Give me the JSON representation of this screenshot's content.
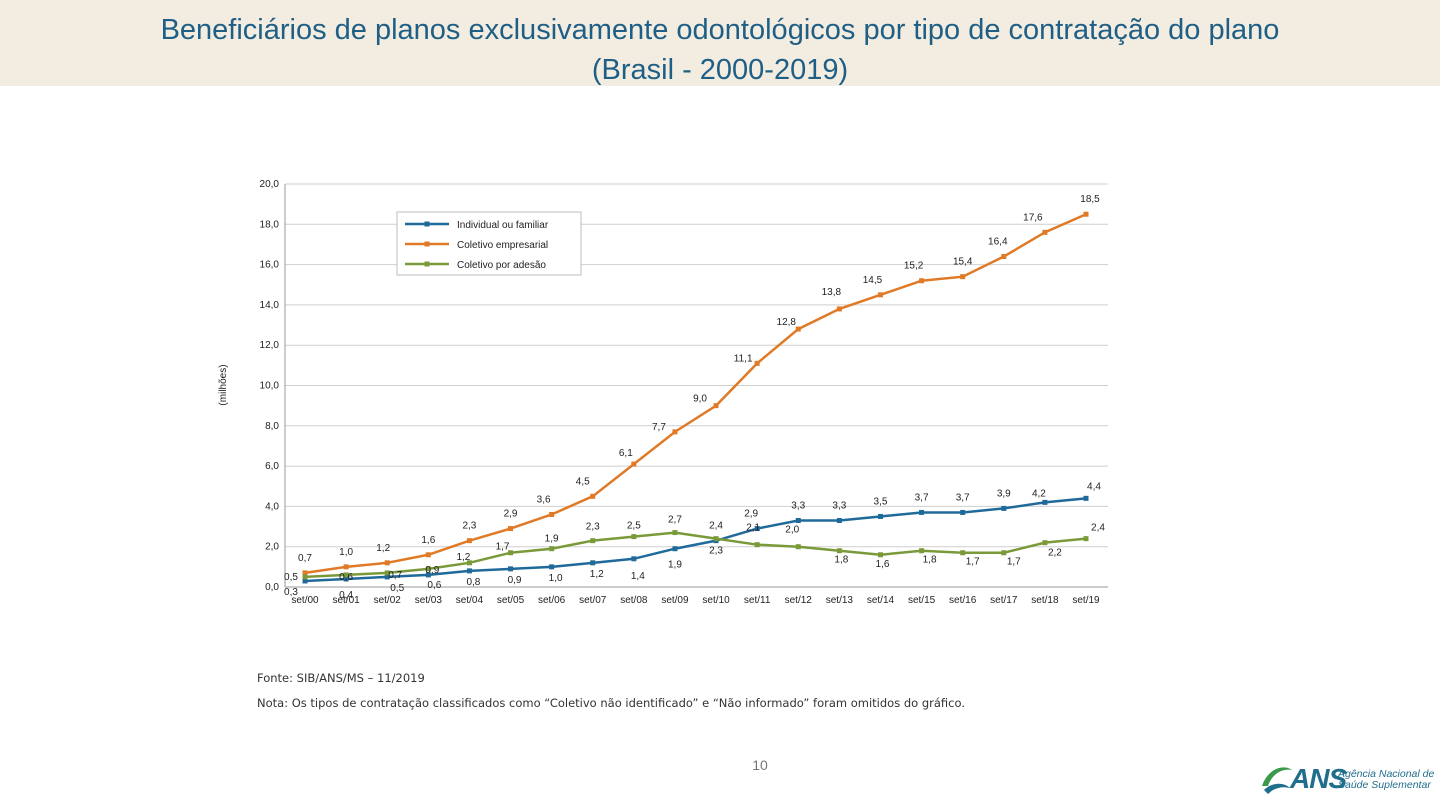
{
  "header": {
    "title_line1": "Beneficiários de planos exclusivamente odontológicos por tipo de contratação do plano",
    "title_line2": "(Brasil - 2000-2019)"
  },
  "chart_data": {
    "type": "line",
    "title": "Beneficiários de planos exclusivamente odontológicos por tipo de contratação do plano (Brasil - 2000-2019)",
    "xlabel": "",
    "ylabel": "(milhões)",
    "ylim": [
      0,
      20
    ],
    "yticks": [
      "0,0",
      "2,0",
      "4,0",
      "6,0",
      "8,0",
      "10,0",
      "12,0",
      "14,0",
      "16,0",
      "18,0",
      "20,0"
    ],
    "grid": true,
    "legend_position": "top-left",
    "categories": [
      "set/00",
      "set/01",
      "set/02",
      "set/03",
      "set/04",
      "set/05",
      "set/06",
      "set/07",
      "set/08",
      "set/09",
      "set/10",
      "set/11",
      "set/12",
      "set/13",
      "set/14",
      "set/15",
      "set/16",
      "set/17",
      "set/18",
      "set/19"
    ],
    "series": [
      {
        "name": "Individual ou familiar",
        "color": "#1f6a9a",
        "values": [
          0.3,
          0.4,
          0.5,
          0.6,
          0.8,
          0.9,
          1.0,
          1.2,
          1.4,
          1.9,
          2.3,
          2.9,
          3.3,
          3.3,
          3.5,
          3.7,
          3.7,
          3.9,
          4.2,
          4.4
        ],
        "labels": [
          "0,3",
          "0,4",
          "0,5",
          "0,6",
          "0,8",
          "0,9",
          "1,0",
          "1,2",
          "1,4",
          "1,9",
          "2,3",
          "2,9",
          "3,3",
          "3,3",
          "3,5",
          "3,7",
          "3,7",
          "3,9",
          "4,2",
          "4,4"
        ]
      },
      {
        "name": "Coletivo empresarial",
        "color": "#e07a26",
        "values": [
          0.7,
          1.0,
          1.2,
          1.6,
          2.3,
          2.9,
          3.6,
          4.5,
          6.1,
          7.7,
          9.0,
          11.1,
          12.8,
          13.8,
          14.5,
          15.2,
          15.4,
          16.4,
          17.6,
          18.5
        ],
        "labels": [
          "0,7",
          "1,0",
          "1,2",
          "1,6",
          "2,3",
          "2,9",
          "3,6",
          "4,5",
          "6,1",
          "7,7",
          "9,0",
          "11,1",
          "12,8",
          "13,8",
          "14,5",
          "15,2",
          "15,4",
          "16,4",
          "17,6",
          "18,5"
        ]
      },
      {
        "name": "Coletivo por adesão",
        "color": "#7a9a3a",
        "values": [
          0.5,
          0.6,
          0.7,
          0.9,
          1.2,
          1.7,
          1.9,
          2.3,
          2.5,
          2.7,
          2.4,
          2.1,
          2.0,
          1.8,
          1.6,
          1.8,
          1.7,
          1.7,
          2.2,
          2.4
        ],
        "labels": [
          "0,5",
          "0,6",
          "0,7",
          "0,9",
          "1,2",
          "1,7",
          "1,9",
          "2,3",
          "2,5",
          "2,7",
          "2,4",
          "2,1",
          "2,0",
          "1,8",
          "1,6",
          "1,8",
          "1,7",
          "1,7",
          "2,2",
          "2,4"
        ]
      }
    ]
  },
  "footer": {
    "source": "Fonte: SIB/ANS/MS – 11/2019",
    "note": "Nota: Os tipos de contratação classificados como “Coletivo não identificado” e “Não informado” foram omitidos do gráfico.",
    "page_number": "10"
  },
  "logo": {
    "brand": "ANS",
    "line1": "Agência Nacional de",
    "line2": "Saúde Suplementar"
  }
}
